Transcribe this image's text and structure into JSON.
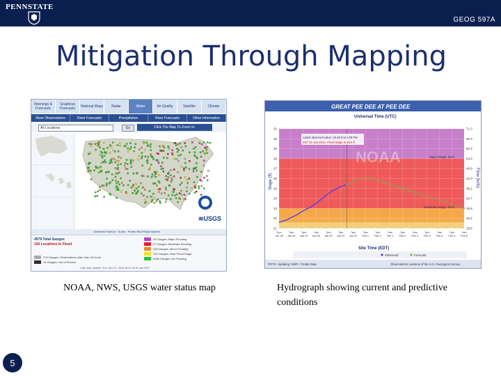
{
  "header": {
    "logo_text": "PENNSTATE",
    "course": "GEOG 597A"
  },
  "slide": {
    "title": "Mitigation Through Mapping",
    "page_number": "5"
  },
  "map_panel": {
    "tabs": [
      {
        "label": "Warnings & Forecasts"
      },
      {
        "label": "Graphical Forecasts"
      },
      {
        "label": "National Maps"
      },
      {
        "label": "Radar"
      },
      {
        "label": "Water"
      },
      {
        "label": "Air Quality"
      },
      {
        "label": "Satellite"
      },
      {
        "label": "Climate"
      }
    ],
    "subtabs": [
      {
        "label": "River Observations"
      },
      {
        "label": "River Forecasts"
      },
      {
        "label": "Precipitation"
      },
      {
        "label": "River Forecasts"
      },
      {
        "label": "Other Information"
      }
    ],
    "location_select": "All Locations",
    "go_label": "Go",
    "zoom_label": "Click The Map To Zoom In.",
    "footer_regions": "American Samoa · Guam · Puerto Rico/Virgin Islands",
    "total_gauges": "4579 Total Gauges",
    "locations_in_flood": "150 Locations In Flood",
    "legend": [
      {
        "label": "15 Gauges: Major Flooding",
        "color": "#c040c8"
      },
      {
        "label": "27 Gauges: Moderate Flooding",
        "color": "#e02020"
      },
      {
        "label": "108 Gauges: Minor Flooding",
        "color": "#f08a20"
      },
      {
        "label": "152 Gauges: Near Flood Stage",
        "color": "#f0e020"
      },
      {
        "label": "3308 Gauges: No Flooding",
        "color": "#30c030"
      }
    ],
    "legend_bottom": [
      {
        "label": "276 Gauges: Observations older than 24 hours",
        "color": "#a8a8a8"
      },
      {
        "label": "14 Gauges: Out of Service",
        "color": "#303030"
      }
    ],
    "last_update": "Last map update: Thu, Apr 01, 2010 at 01:11:00 pm EDT"
  },
  "hydrograph": {
    "title": "GREAT PEE DEE  AT PEE DEE",
    "top_axis_label": "Universal Time (UTC)",
    "bottom_axis_label": "Site Time (EDT)",
    "left_axis_label": "Stage (ft)",
    "right_axis_label": "Flow (kcfs)",
    "annotation_1": "Latest observed value: 25.39 ft at 1:00 PM",
    "annotation_2": "EST 31-Jan-2010. Flood Stage is 19.0 ft.",
    "major_label": "Major Stage: 28.0'",
    "moderate_label": "Moderate Stage: 23.0'",
    "footer_left": "PDTS: Updating 'HWR' / Grade Data",
    "footer_right": "Observations courtesy of the U.S. Geological Survey",
    "legend_observed": "Observed",
    "legend_forecast": "Forecast",
    "watermark": "NOAA",
    "colors": {
      "major": "#c77fc9",
      "moderate": "#ef5a5a",
      "minor": "#f5a84a",
      "action": "#f2d07a",
      "observed": "#5a3fe0",
      "forecast": "#7bb04a"
    }
  },
  "chart_data": {
    "type": "line",
    "title": "GREAT PEE DEE  AT PEE DEE",
    "xlabel": "Site Time (EDT)",
    "ylabel": "Stage (ft)",
    "ylim": [
      21,
      31
    ],
    "x": [
      "7pm Jan 28",
      "1am Jan 29",
      "7am Jan 29",
      "1pm Jan 29",
      "7pm Jan 29",
      "1am Jan 30",
      "7am Jan 30",
      "1pm Jan 30",
      "7pm Jan 30",
      "1am Jan 31",
      "7am Jan 31",
      "1pm Jan 31",
      "7pm Jan 31",
      "1am Feb 1",
      "7am Feb 1",
      "1pm Feb 1",
      "7pm Feb 1",
      "1am Feb 2",
      "7am Feb 2",
      "1pm Feb 2",
      "7pm Feb 2",
      "1am Feb 3",
      "7am Feb 3",
      "1pm Feb 3",
      "7pm Feb 3",
      "1am Feb 4",
      "7am Feb 4",
      "1pm Feb 4",
      "7pm Feb 4",
      "1am Feb 5",
      "7am Feb 5"
    ],
    "series": [
      {
        "name": "Observed",
        "values": [
          21.6,
          21.8,
          22.1,
          22.4,
          22.8,
          23.1,
          23.5,
          24.0,
          24.5,
          24.9,
          25.2,
          25.4,
          null,
          null,
          null,
          null,
          null,
          null,
          null,
          null,
          null,
          null,
          null,
          null,
          null,
          null,
          null,
          null,
          null,
          null,
          null
        ]
      },
      {
        "name": "Forecast",
        "values": [
          null,
          null,
          null,
          null,
          null,
          null,
          null,
          null,
          null,
          null,
          null,
          25.4,
          25.7,
          26.0,
          26.1,
          26.0,
          25.8,
          25.6,
          25.4,
          25.2,
          25.0,
          24.8,
          24.6,
          24.4,
          24.2,
          24.0,
          23.8,
          23.6,
          23.4,
          23.2,
          23.0
        ]
      }
    ],
    "thresholds": [
      {
        "label": "Major Stage: 28.0'",
        "value": 28.0
      },
      {
        "label": "Moderate Stage: 23.0'",
        "value": 23.0
      }
    ],
    "flood_stage": 19.0,
    "left_ticks": [
      21,
      22,
      23,
      24,
      25,
      26,
      27,
      28,
      29,
      30,
      31
    ],
    "right_ticks": [
      "18.5",
      "25.2",
      "29.8",
      "33.7",
      "38.2",
      "43.3",
      "48.9",
      "54.8",
      "60.4",
      "66.3",
      "71.0"
    ]
  },
  "captions": {
    "map": "NOAA, NWS, USGS water status map",
    "hydrograph": "Hydrograph showing current and predictive conditions"
  }
}
